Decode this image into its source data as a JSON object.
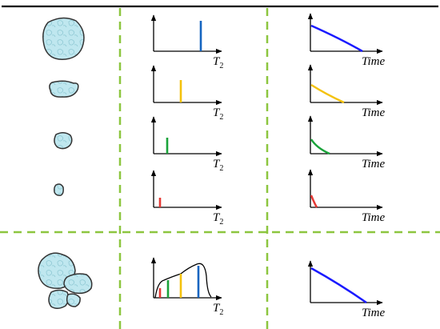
{
  "labels": {
    "t2_main": "T",
    "t2_sub": "2",
    "time": "Time"
  },
  "colors": {
    "large_pore": "#1565c0",
    "medium_pore": "#f4c20d",
    "small_pore": "#1aa33a",
    "tiny_pore": "#e53935",
    "decay_large": "#1a1aff",
    "divider_dashed": "#8cc63f",
    "grain_fill": "#bfe7ef",
    "grain_stroke": "#333333",
    "top_rule": "#000000"
  },
  "rows": [
    {
      "id": "large-pore",
      "color_key": "large_pore",
      "decay_color_key": "decay_large"
    },
    {
      "id": "medium-pore",
      "color_key": "medium_pore",
      "decay_color_key": "medium_pore"
    },
    {
      "id": "small-pore",
      "color_key": "small_pore",
      "decay_color_key": "small_pore"
    },
    {
      "id": "tiny-pore",
      "color_key": "tiny_pore",
      "decay_color_key": "tiny_pore"
    },
    {
      "id": "mixed-pores",
      "color_key": "large_pore",
      "decay_color_key": "decay_large"
    }
  ]
}
